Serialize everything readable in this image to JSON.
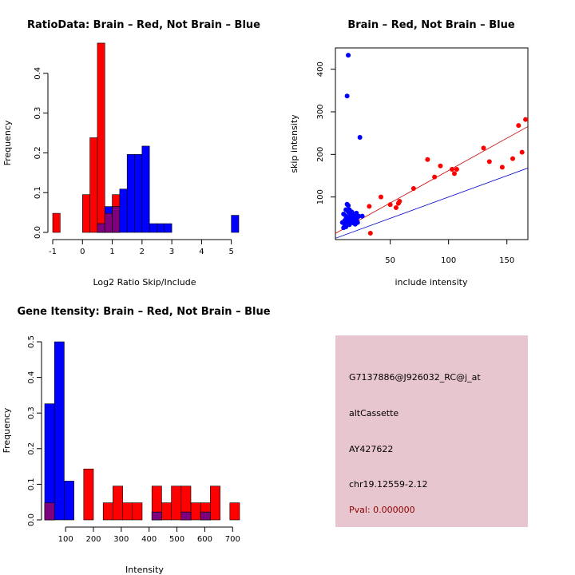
{
  "colors": {
    "red": "#ff0000",
    "blue": "#0000ff",
    "overlap": "#7f007f",
    "blue_line": "#0000cc",
    "red_line": "#cc0000",
    "info_bg": "#e8c6cf",
    "pval_color": "#8b0000"
  },
  "chart_data": [
    {
      "type": "histogram",
      "title": "RatioData: Brain – Red, Not Brain – Blue",
      "xlabel": "Log2 Ratio Skip/Include",
      "ylabel": "Frequency",
      "xlim": [
        -1,
        5.25
      ],
      "ylim": [
        0,
        0.5
      ],
      "xticks": [
        -1,
        0,
        1,
        2,
        3,
        4,
        5
      ],
      "yticks": [
        0.0,
        0.1,
        0.2,
        0.3,
        0.4
      ],
      "bin_edges": [
        -1,
        -0.75,
        -0.5,
        -0.25,
        0,
        0.25,
        0.5,
        0.75,
        1,
        1.25,
        1.5,
        1.75,
        2,
        2.25,
        2.5,
        2.75,
        3,
        3.25,
        3.5,
        3.75,
        4,
        4.25,
        4.5,
        4.75,
        5,
        5.25
      ],
      "series": [
        {
          "name": "Brain",
          "color": "red",
          "values": [
            0.048,
            0,
            0,
            0,
            0.095,
            0.238,
            0.476,
            0.048,
            0.095,
            0,
            0,
            0,
            0,
            0,
            0,
            0,
            0,
            0,
            0,
            0,
            0,
            0,
            0,
            0,
            0
          ]
        },
        {
          "name": "Not Brain",
          "color": "blue",
          "values": [
            0,
            0,
            0,
            0,
            0,
            0,
            0.022,
            0.065,
            0.065,
            0.109,
            0.196,
            0.196,
            0.217,
            0.022,
            0.022,
            0.022,
            0,
            0,
            0,
            0,
            0,
            0,
            0,
            0,
            0.043
          ]
        }
      ],
      "ytick_labels": [
        "0.0",
        "0.1",
        "0.2",
        "0.3",
        "0.4"
      ]
    },
    {
      "type": "scatter",
      "title": "Brain – Red, Not Brain – Blue",
      "xlabel": "include intensity",
      "ylabel": "skip intensity",
      "xlim": [
        3,
        168
      ],
      "ylim": [
        0,
        450
      ],
      "xticks": [
        50,
        100,
        150
      ],
      "yticks": [
        100,
        200,
        300,
        400
      ],
      "series": [
        {
          "name": "Brain",
          "color": "red",
          "points": [
            [
              33,
              15
            ],
            [
              32,
              78
            ],
            [
              42,
              100
            ],
            [
              50,
              82
            ],
            [
              55,
              75
            ],
            [
              57,
              85
            ],
            [
              58,
              90
            ],
            [
              70,
              120
            ],
            [
              82,
              188
            ],
            [
              88,
              147
            ],
            [
              93,
              173
            ],
            [
              103,
              165
            ],
            [
              105,
              155
            ],
            [
              107,
              165
            ],
            [
              130,
              215
            ],
            [
              135,
              183
            ],
            [
              146,
              170
            ],
            [
              155,
              190
            ],
            [
              160,
              268
            ],
            [
              163,
              205
            ],
            [
              166,
              282
            ]
          ]
        },
        {
          "name": "Not Brain",
          "color": "blue",
          "points": [
            [
              14,
              433
            ],
            [
              13,
              337
            ],
            [
              24,
              240
            ],
            [
              13,
              83
            ],
            [
              14,
              80
            ],
            [
              12,
              70
            ],
            [
              10,
              60
            ],
            [
              12,
              55
            ],
            [
              13,
              50
            ],
            [
              15,
              55
            ],
            [
              16,
              45
            ],
            [
              17,
              40
            ],
            [
              18,
              50
            ],
            [
              11,
              35
            ],
            [
              12,
              30
            ],
            [
              14,
              65
            ],
            [
              15,
              70
            ],
            [
              16,
              62
            ],
            [
              17,
              58
            ],
            [
              18,
              42
            ],
            [
              19,
              38
            ],
            [
              20,
              48
            ],
            [
              21,
              44
            ],
            [
              22,
              52
            ],
            [
              23,
              55
            ],
            [
              26,
              55
            ],
            [
              9,
              40
            ],
            [
              10,
              28
            ],
            [
              11,
              45
            ],
            [
              13,
              42
            ],
            [
              15,
              35
            ],
            [
              17,
              65
            ],
            [
              19,
              55
            ],
            [
              20,
              36
            ],
            [
              21,
              62
            ],
            [
              22,
              40
            ],
            [
              12,
              48
            ],
            [
              14,
              52
            ],
            [
              16,
              50
            ],
            [
              18,
              60
            ]
          ]
        }
      ],
      "lines": [
        {
          "color": "blue_line",
          "intercept": 0,
          "slope": 1
        },
        {
          "color": "red_line",
          "intercept": 10,
          "slope": 1.52
        }
      ]
    },
    {
      "type": "histogram",
      "title": "Gene Itensity: Brain – Red, Not Brain – Blue",
      "xlabel": "Intensity",
      "ylabel": "Frequency",
      "xlim": [
        25,
        725
      ],
      "ylim": [
        0,
        0.5
      ],
      "xticks": [
        100,
        200,
        300,
        400,
        500,
        600,
        700
      ],
      "yticks": [
        0.0,
        0.1,
        0.2,
        0.3,
        0.4,
        0.5
      ],
      "bin_edges": [
        25,
        60,
        95,
        130,
        165,
        200,
        235,
        270,
        305,
        340,
        375,
        410,
        445,
        480,
        515,
        550,
        585,
        620,
        655,
        690,
        725
      ],
      "series": [
        {
          "name": "Brain",
          "color": "red",
          "values": [
            0.048,
            0,
            0,
            0,
            0.143,
            0,
            0.048,
            0.095,
            0.048,
            0.048,
            0,
            0.095,
            0.048,
            0.095,
            0.095,
            0.048,
            0.048,
            0.095,
            0,
            0.048
          ]
        },
        {
          "name": "Not Brain",
          "color": "blue",
          "values": [
            0.326,
            0.5,
            0.109,
            0,
            0,
            0,
            0,
            0,
            0,
            0,
            0,
            0.022,
            0,
            0,
            0.022,
            0,
            0.022,
            0,
            0,
            0
          ]
        }
      ],
      "ytick_labels": [
        "0.0",
        "0.1",
        "0.2",
        "0.3",
        "0.4",
        "0.5"
      ]
    }
  ],
  "info_panel": {
    "probe_id": "G7137886@J926032_RC@j_at",
    "event_type": "altCassette",
    "accession": "AY427622",
    "location": "chr19.12559-2.12",
    "pval": "Pval: 0.000000"
  }
}
